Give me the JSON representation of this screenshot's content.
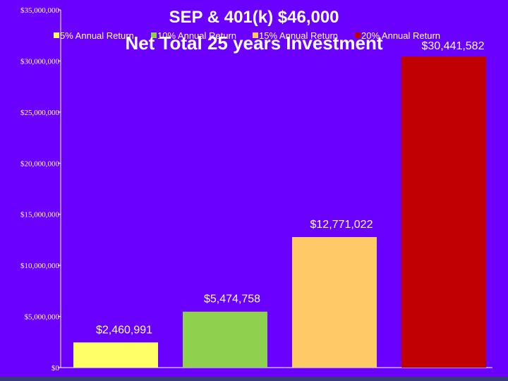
{
  "colors": {
    "background": "#6a00ff",
    "plot_background": "#6a00ff",
    "text": "#ffffff",
    "axis": "#ffffff"
  },
  "chart_data": {
    "type": "bar",
    "title": "SEP & 401(k) $46,000",
    "subtitle": "Net Total 25 years Investment",
    "xlabel": "",
    "ylabel": "",
    "ylim": [
      0,
      35000000
    ],
    "y_ticks": [
      0,
      5000000,
      10000000,
      15000000,
      20000000,
      25000000,
      30000000,
      35000000
    ],
    "y_tick_labels": [
      "$0",
      "$5,000,000",
      "$10,000,000",
      "$15,000,000",
      "$20,000,000",
      "$25,000,000",
      "$30,000,000",
      "$35,000,000"
    ],
    "grid": false,
    "legend_position": "top",
    "series": [
      {
        "name": "5% Annual Return",
        "value": 2460991,
        "label": "$2,460,991",
        "color": "#ffff66"
      },
      {
        "name": "10% Annual Return",
        "value": 5474758,
        "label": "$5,474,758",
        "color": "#8fd14f"
      },
      {
        "name": "15% Annual Return",
        "value": 12771022,
        "label": "$12,771,022",
        "color": "#ffc966"
      },
      {
        "name": "20% Annual Return",
        "value": 30441582,
        "label": "$30,441,582",
        "color": "#c00000"
      }
    ]
  }
}
